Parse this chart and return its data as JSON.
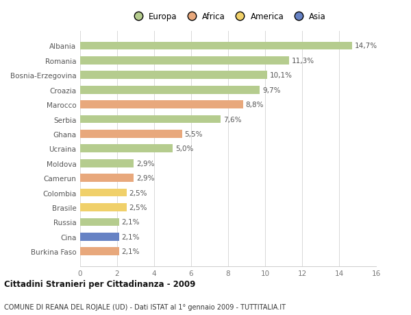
{
  "countries": [
    "Albania",
    "Romania",
    "Bosnia-Erzegovina",
    "Croazia",
    "Marocco",
    "Serbia",
    "Ghana",
    "Ucraina",
    "Moldova",
    "Camerun",
    "Colombia",
    "Brasile",
    "Russia",
    "Cina",
    "Burkina Faso"
  ],
  "values": [
    14.7,
    11.3,
    10.1,
    9.7,
    8.8,
    7.6,
    5.5,
    5.0,
    2.9,
    2.9,
    2.5,
    2.5,
    2.1,
    2.1,
    2.1
  ],
  "labels": [
    "14,7%",
    "11,3%",
    "10,1%",
    "9,7%",
    "8,8%",
    "7,6%",
    "5,5%",
    "5,0%",
    "2,9%",
    "2,9%",
    "2,5%",
    "2,5%",
    "2,1%",
    "2,1%",
    "2,1%"
  ],
  "continents": [
    "Europa",
    "Europa",
    "Europa",
    "Europa",
    "Africa",
    "Europa",
    "Africa",
    "Europa",
    "Europa",
    "Africa",
    "America",
    "America",
    "Europa",
    "Asia",
    "Africa"
  ],
  "colors": {
    "Europa": "#b5cc8e",
    "Africa": "#e8a87c",
    "America": "#f0d06a",
    "Asia": "#6682c4"
  },
  "xlim": [
    0,
    16
  ],
  "xticks": [
    0,
    2,
    4,
    6,
    8,
    10,
    12,
    14,
    16
  ],
  "title_bold": "Cittadini Stranieri per Cittadinanza - 2009",
  "title_sub": "COMUNE DI REANA DEL ROJALE (UD) - Dati ISTAT al 1° gennaio 2009 - TUTTITALIA.IT",
  "bar_height": 0.55,
  "background_color": "#ffffff",
  "grid_color": "#d8d8d8",
  "label_fontsize": 7.5,
  "tick_fontsize": 7.5,
  "legend_order": [
    "Europa",
    "Africa",
    "America",
    "Asia"
  ]
}
